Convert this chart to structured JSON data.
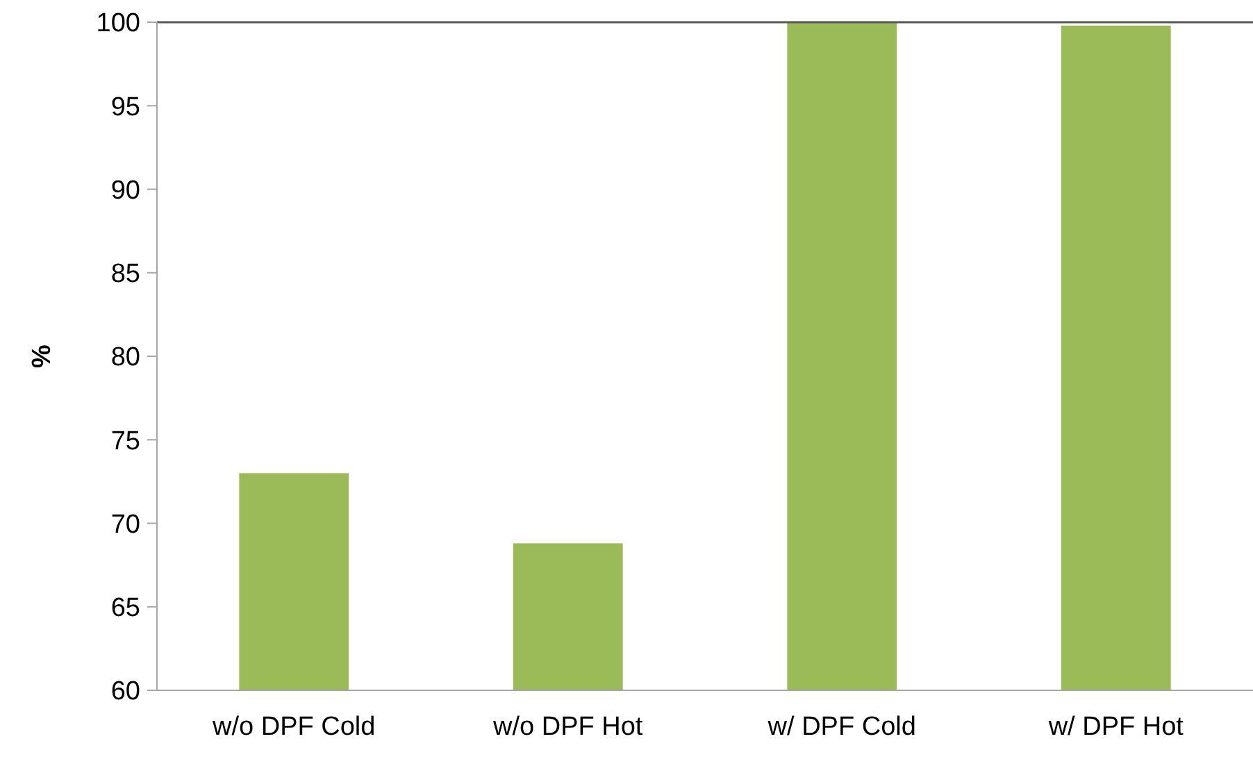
{
  "chart_data": {
    "type": "bar",
    "ylabel": "%",
    "categories": [
      "w/o DPF Cold",
      "w/o DPF Hot",
      "w/ DPF Cold",
      "w/ DPF Hot"
    ],
    "values": [
      73.0,
      68.8,
      100,
      99.8
    ],
    "color": "#9bbb59",
    "ylim": [
      60,
      100
    ],
    "yticks": [
      60,
      65,
      70,
      75,
      80,
      85,
      90,
      95,
      100
    ],
    "grid": false
  }
}
